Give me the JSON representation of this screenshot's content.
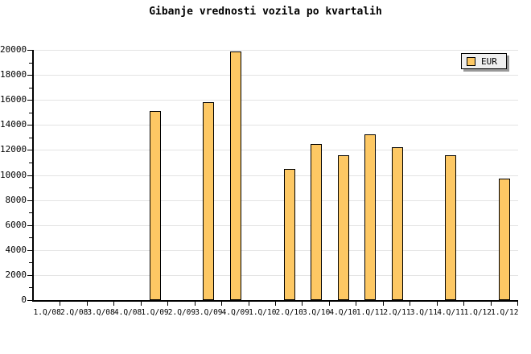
{
  "title": "Gibanje vrednosti vozila po kvartalih",
  "legend": {
    "label": "EUR",
    "position": "top-right"
  },
  "colors": {
    "background": "#FFFFFF",
    "bar_fill": "#FDC864",
    "bar_border": "#000000",
    "gridline": "#E3E3E3",
    "axis": "#000000",
    "legend_bg": "#EFEFEF",
    "legend_shadow": "#999999",
    "text": "#000000"
  },
  "chart_data": {
    "type": "bar",
    "title": "Gibanje vrednosti vozila po kvartalih",
    "xlabel": "",
    "ylabel": "",
    "categories": [
      "1.Q/08",
      "2.Q/08",
      "3.Q/08",
      "4.Q/08",
      "1.Q/09",
      "2.Q/09",
      "3.Q/09",
      "4.Q/09",
      "1.Q/10",
      "2.Q/10",
      "3.Q/10",
      "4.Q/10",
      "1.Q/11",
      "2.Q/11",
      "3.Q/11",
      "4.Q/11",
      "1.Q/12",
      "1.Q/12"
    ],
    "series": [
      {
        "name": "EUR",
        "values": [
          null,
          null,
          null,
          null,
          15100,
          null,
          15850,
          19900,
          null,
          10480,
          12450,
          11560,
          13250,
          12200,
          null,
          11550,
          null,
          9700
        ]
      }
    ],
    "ylim": [
      0,
      20000
    ],
    "yticks": [
      0,
      2000,
      4000,
      6000,
      8000,
      10000,
      12000,
      14000,
      16000,
      18000,
      20000
    ],
    "ytick_minor_step": 1000,
    "grid": "horizontal-major",
    "legend_position": "top-right"
  }
}
